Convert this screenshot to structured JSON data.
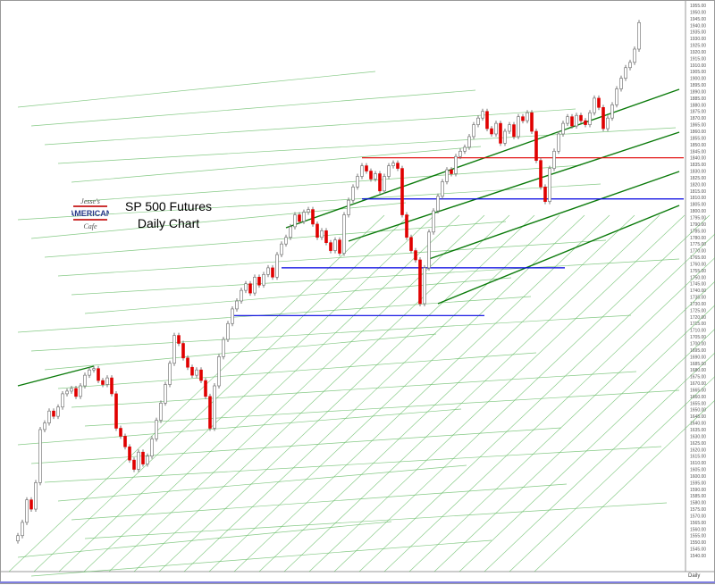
{
  "chart_data": {
    "type": "candlestick",
    "title": "SP 500 Futures",
    "subtitle": "Daily Chart",
    "period_label": "Daily",
    "logo_text": "Jesse's AMERICAN Cafe",
    "ylim": [
      1540,
      1955
    ],
    "ytick_step": 5,
    "grid": false,
    "colors": {
      "up": "#ffffff",
      "down": "#e00000",
      "wick": "#777777",
      "trend": "#5cb85c",
      "trend_dark": "#0a7a0a",
      "resistance": "#e00000",
      "support": "#0000e0"
    },
    "close": [
      1555,
      1565,
      1582,
      1575,
      1595,
      1635,
      1640,
      1649,
      1645,
      1652,
      1662,
      1664,
      1666,
      1660,
      1668,
      1676,
      1680,
      1681,
      1672,
      1669,
      1674,
      1662,
      1636,
      1630,
      1622,
      1612,
      1605,
      1618,
      1609,
      1615,
      1628,
      1642,
      1655,
      1669,
      1685,
      1706,
      1700,
      1689,
      1682,
      1676,
      1680,
      1672,
      1660,
      1636,
      1668,
      1690,
      1703,
      1715,
      1726,
      1732,
      1740,
      1745,
      1738,
      1750,
      1744,
      1752,
      1757,
      1750,
      1767,
      1775,
      1780,
      1788,
      1797,
      1792,
      1799,
      1801,
      1790,
      1780,
      1785,
      1776,
      1770,
      1778,
      1768,
      1797,
      1808,
      1818,
      1826,
      1834,
      1830,
      1824,
      1828,
      1815,
      1826,
      1834,
      1836,
      1832,
      1797,
      1780,
      1770,
      1763,
      1730,
      1757,
      1784,
      1800,
      1811,
      1822,
      1831,
      1828,
      1841,
      1845,
      1848,
      1856,
      1865,
      1870,
      1875,
      1862,
      1858,
      1866,
      1851,
      1860,
      1865,
      1856,
      1871,
      1868,
      1874,
      1860,
      1838,
      1818,
      1807,
      1832,
      1845,
      1858,
      1866,
      1871,
      1864,
      1872,
      1868,
      1865,
      1874,
      1885,
      1878,
      1862,
      1870,
      1880,
      1892,
      1900,
      1908,
      1912,
      1922,
      1942
    ],
    "horizontal_levels": [
      {
        "value": 1840,
        "color": "red"
      },
      {
        "value": 1809,
        "color": "blue"
      },
      {
        "value": 1757,
        "color": "blue"
      },
      {
        "value": 1721,
        "color": "blue"
      }
    ]
  }
}
